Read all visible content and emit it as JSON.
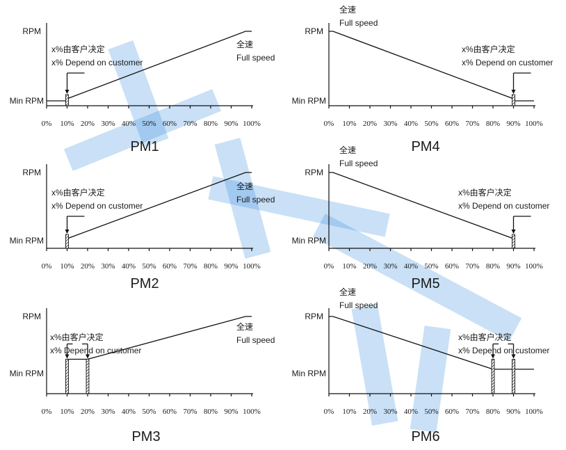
{
  "chart_data": [
    {
      "type": "line",
      "title": "PM1",
      "ylabels": [
        "RPM",
        "Min RPM"
      ],
      "xticks": [
        "0%",
        "10%",
        "20%",
        "30%",
        "40%",
        "50%",
        "60%",
        "70%",
        "80%",
        "90%",
        "100%"
      ],
      "points": [
        [
          0,
          0
        ],
        [
          10,
          0
        ],
        [
          10,
          0.03
        ],
        [
          97,
          1
        ],
        [
          100,
          1
        ]
      ],
      "shaded": [
        [
          9,
          11
        ]
      ],
      "markers": [
        10
      ],
      "note": [
        "x%由客户决定",
        "x%  Depend on customer"
      ],
      "fullspeed": [
        "全速",
        "Full speed"
      ]
    },
    {
      "type": "line",
      "title": "PM4",
      "ylabels": [
        "RPM",
        "Min RPM"
      ],
      "xticks": [
        "0%",
        "10%",
        "20%",
        "30%",
        "40%",
        "50%",
        "60%",
        "70%",
        "80%",
        "90%",
        "100%"
      ],
      "points": [
        [
          0,
          1
        ],
        [
          2,
          1
        ],
        [
          90,
          0.03
        ],
        [
          90,
          0
        ],
        [
          100,
          0
        ]
      ],
      "shaded": [
        [
          89,
          91
        ]
      ],
      "markers": [
        90
      ],
      "note": [
        "x%由客户决定",
        "x%  Depend on customer"
      ],
      "fullspeed": [
        "全速",
        "Full speed"
      ]
    },
    {
      "type": "line",
      "title": "PM2",
      "ylabels": [
        "RPM",
        "Min RPM"
      ],
      "xticks": [
        "0%",
        "10%",
        "20%",
        "30%",
        "40%",
        "50%",
        "60%",
        "70%",
        "80%",
        "90%",
        "100%"
      ],
      "points": [
        [
          10,
          0
        ],
        [
          10,
          0.03
        ],
        [
          97,
          1
        ],
        [
          100,
          1
        ]
      ],
      "shaded": [
        [
          9,
          11
        ]
      ],
      "markers": [
        10
      ],
      "note": [
        "x%由客户决定",
        "x%  Depend on customer"
      ],
      "fullspeed": [
        "全速",
        "Full speed"
      ]
    },
    {
      "type": "line",
      "title": "PM5",
      "ylabels": [
        "RPM",
        "Min RPM"
      ],
      "xticks": [
        "0%",
        "10%",
        "20%",
        "30%",
        "40%",
        "50%",
        "60%",
        "70%",
        "80%",
        "90%",
        "100%"
      ],
      "points": [
        [
          0,
          1
        ],
        [
          2,
          1
        ],
        [
          90,
          0.03
        ],
        [
          90,
          0
        ]
      ],
      "shaded": [
        [
          89,
          91
        ]
      ],
      "markers": [
        90
      ],
      "note": [
        "x%由客户决定",
        "x%  Depend on customer"
      ],
      "fullspeed": [
        "全速",
        "Full speed"
      ]
    },
    {
      "type": "line",
      "title": "PM3",
      "ylabels": [
        "RPM",
        "Min RPM"
      ],
      "xticks": [
        "0%",
        "10%",
        "20%",
        "30%",
        "40%",
        "50%",
        "60%",
        "70%",
        "80%",
        "90%",
        "100%"
      ],
      "points": [
        [
          10,
          0
        ],
        [
          10,
          1
        ],
        [
          20,
          1
        ],
        [
          20,
          0
        ],
        [
          20,
          1
        ],
        [
          97,
          4
        ],
        [
          100,
          4
        ]
      ],
      "yscale": 4,
      "shaded": [
        [
          9,
          11
        ],
        [
          19,
          21
        ]
      ],
      "markers": [
        10,
        20
      ],
      "bracket": [
        10,
        20
      ],
      "note": [
        "x%由客户决定",
        "x%  Depend on customer"
      ],
      "fullspeed": [
        "全速",
        "Full speed"
      ]
    },
    {
      "type": "line",
      "title": "PM6",
      "ylabels": [
        "RPM",
        "Min RPM"
      ],
      "xticks": [
        "0%",
        "10%",
        "20%",
        "30%",
        "40%",
        "50%",
        "60%",
        "70%",
        "80%",
        "90%",
        "100%"
      ],
      "points": [
        [
          0,
          4
        ],
        [
          2,
          4
        ],
        [
          80,
          0.3
        ],
        [
          80,
          0
        ],
        [
          80,
          0.3
        ],
        [
          90,
          0.3
        ],
        [
          90,
          0
        ],
        [
          90,
          0.3
        ],
        [
          100,
          0.3
        ]
      ],
      "yscale": 4,
      "shaded": [
        [
          79,
          81
        ],
        [
          89,
          91
        ]
      ],
      "markers": [
        80,
        90
      ],
      "bracket": [
        80,
        90
      ],
      "note": [
        "x%由客户决定",
        "x%  Depend on customer"
      ],
      "fullspeed": [
        "全速",
        "Full speed"
      ]
    }
  ],
  "watermark": "济兴"
}
